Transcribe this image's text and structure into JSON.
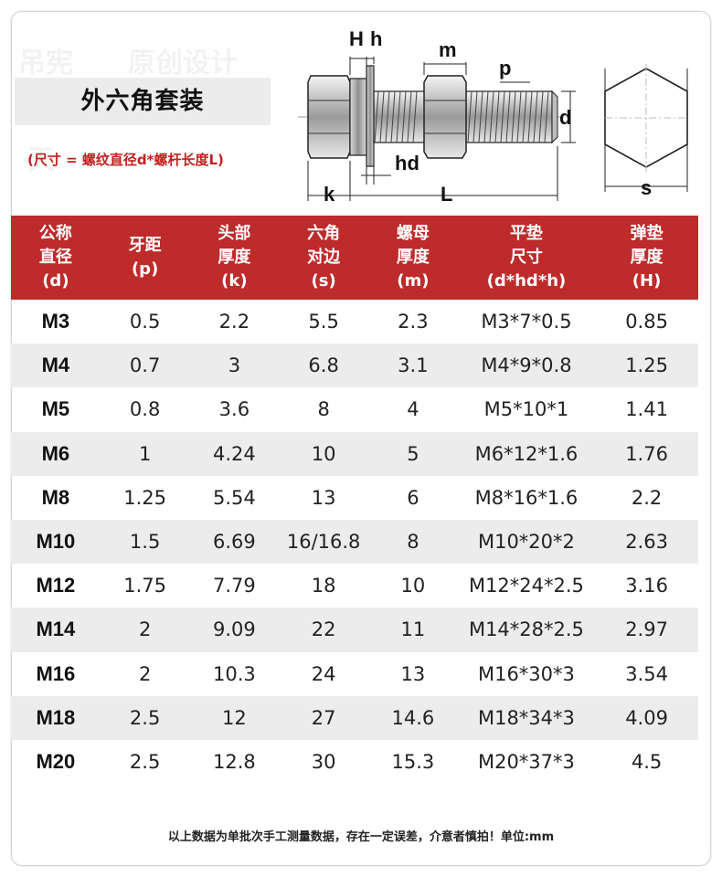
{
  "title": "外六角套装",
  "size_note": "(尺寸 = 螺纹直径d*螺杆长度L)",
  "diagram_labels": {
    "H": "H",
    "h": "h",
    "m": "m",
    "p": "p",
    "d": "d",
    "hd": "hd",
    "k": "k",
    "L": "L",
    "s": "s"
  },
  "table": {
    "headers": [
      [
        "公称",
        "直径",
        "(d)"
      ],
      [
        "牙距",
        "(p)"
      ],
      [
        "头部",
        "厚度",
        "(k)"
      ],
      [
        "六角",
        "对边",
        "(s)"
      ],
      [
        "螺母",
        "厚度",
        "(m)"
      ],
      [
        "平垫",
        "尺寸",
        "(d*hd*h)"
      ],
      [
        "弹垫",
        "厚度",
        "(H)"
      ]
    ],
    "rows": [
      [
        "M3",
        "0.5",
        "2.2",
        "5.5",
        "2.3",
        "M3*7*0.5",
        "0.85"
      ],
      [
        "M4",
        "0.7",
        "3",
        "6.8",
        "3.1",
        "M4*9*0.8",
        "1.25"
      ],
      [
        "M5",
        "0.8",
        "3.6",
        "8",
        "4",
        "M5*10*1",
        "1.41"
      ],
      [
        "M6",
        "1",
        "4.24",
        "10",
        "5",
        "M6*12*1.6",
        "1.76"
      ],
      [
        "M8",
        "1.25",
        "5.54",
        "13",
        "6",
        "M8*16*1.6",
        "2.2"
      ],
      [
        "M10",
        "1.5",
        "6.69",
        "16/16.8",
        "8",
        "M10*20*2",
        "2.63"
      ],
      [
        "M12",
        "1.75",
        "7.79",
        "18",
        "10",
        "M12*24*2.5",
        "3.16"
      ],
      [
        "M14",
        "2",
        "9.09",
        "22",
        "11",
        "M14*28*2.5",
        "2.97"
      ],
      [
        "M16",
        "2",
        "10.3",
        "24",
        "13",
        "M16*30*3",
        "3.54"
      ],
      [
        "M18",
        "2.5",
        "12",
        "27",
        "14.6",
        "M18*34*3",
        "4.09"
      ],
      [
        "M20",
        "2.5",
        "12.8",
        "30",
        "15.3",
        "M20*37*3",
        "4.5"
      ]
    ]
  },
  "footer": "以上数据为单批次手工测量数据，存在一定误差，介意者慎拍！单位:mm",
  "colors": {
    "header_bg": "#be2b2b",
    "note_red": "#c3201f",
    "alt_row": "#ececec"
  }
}
